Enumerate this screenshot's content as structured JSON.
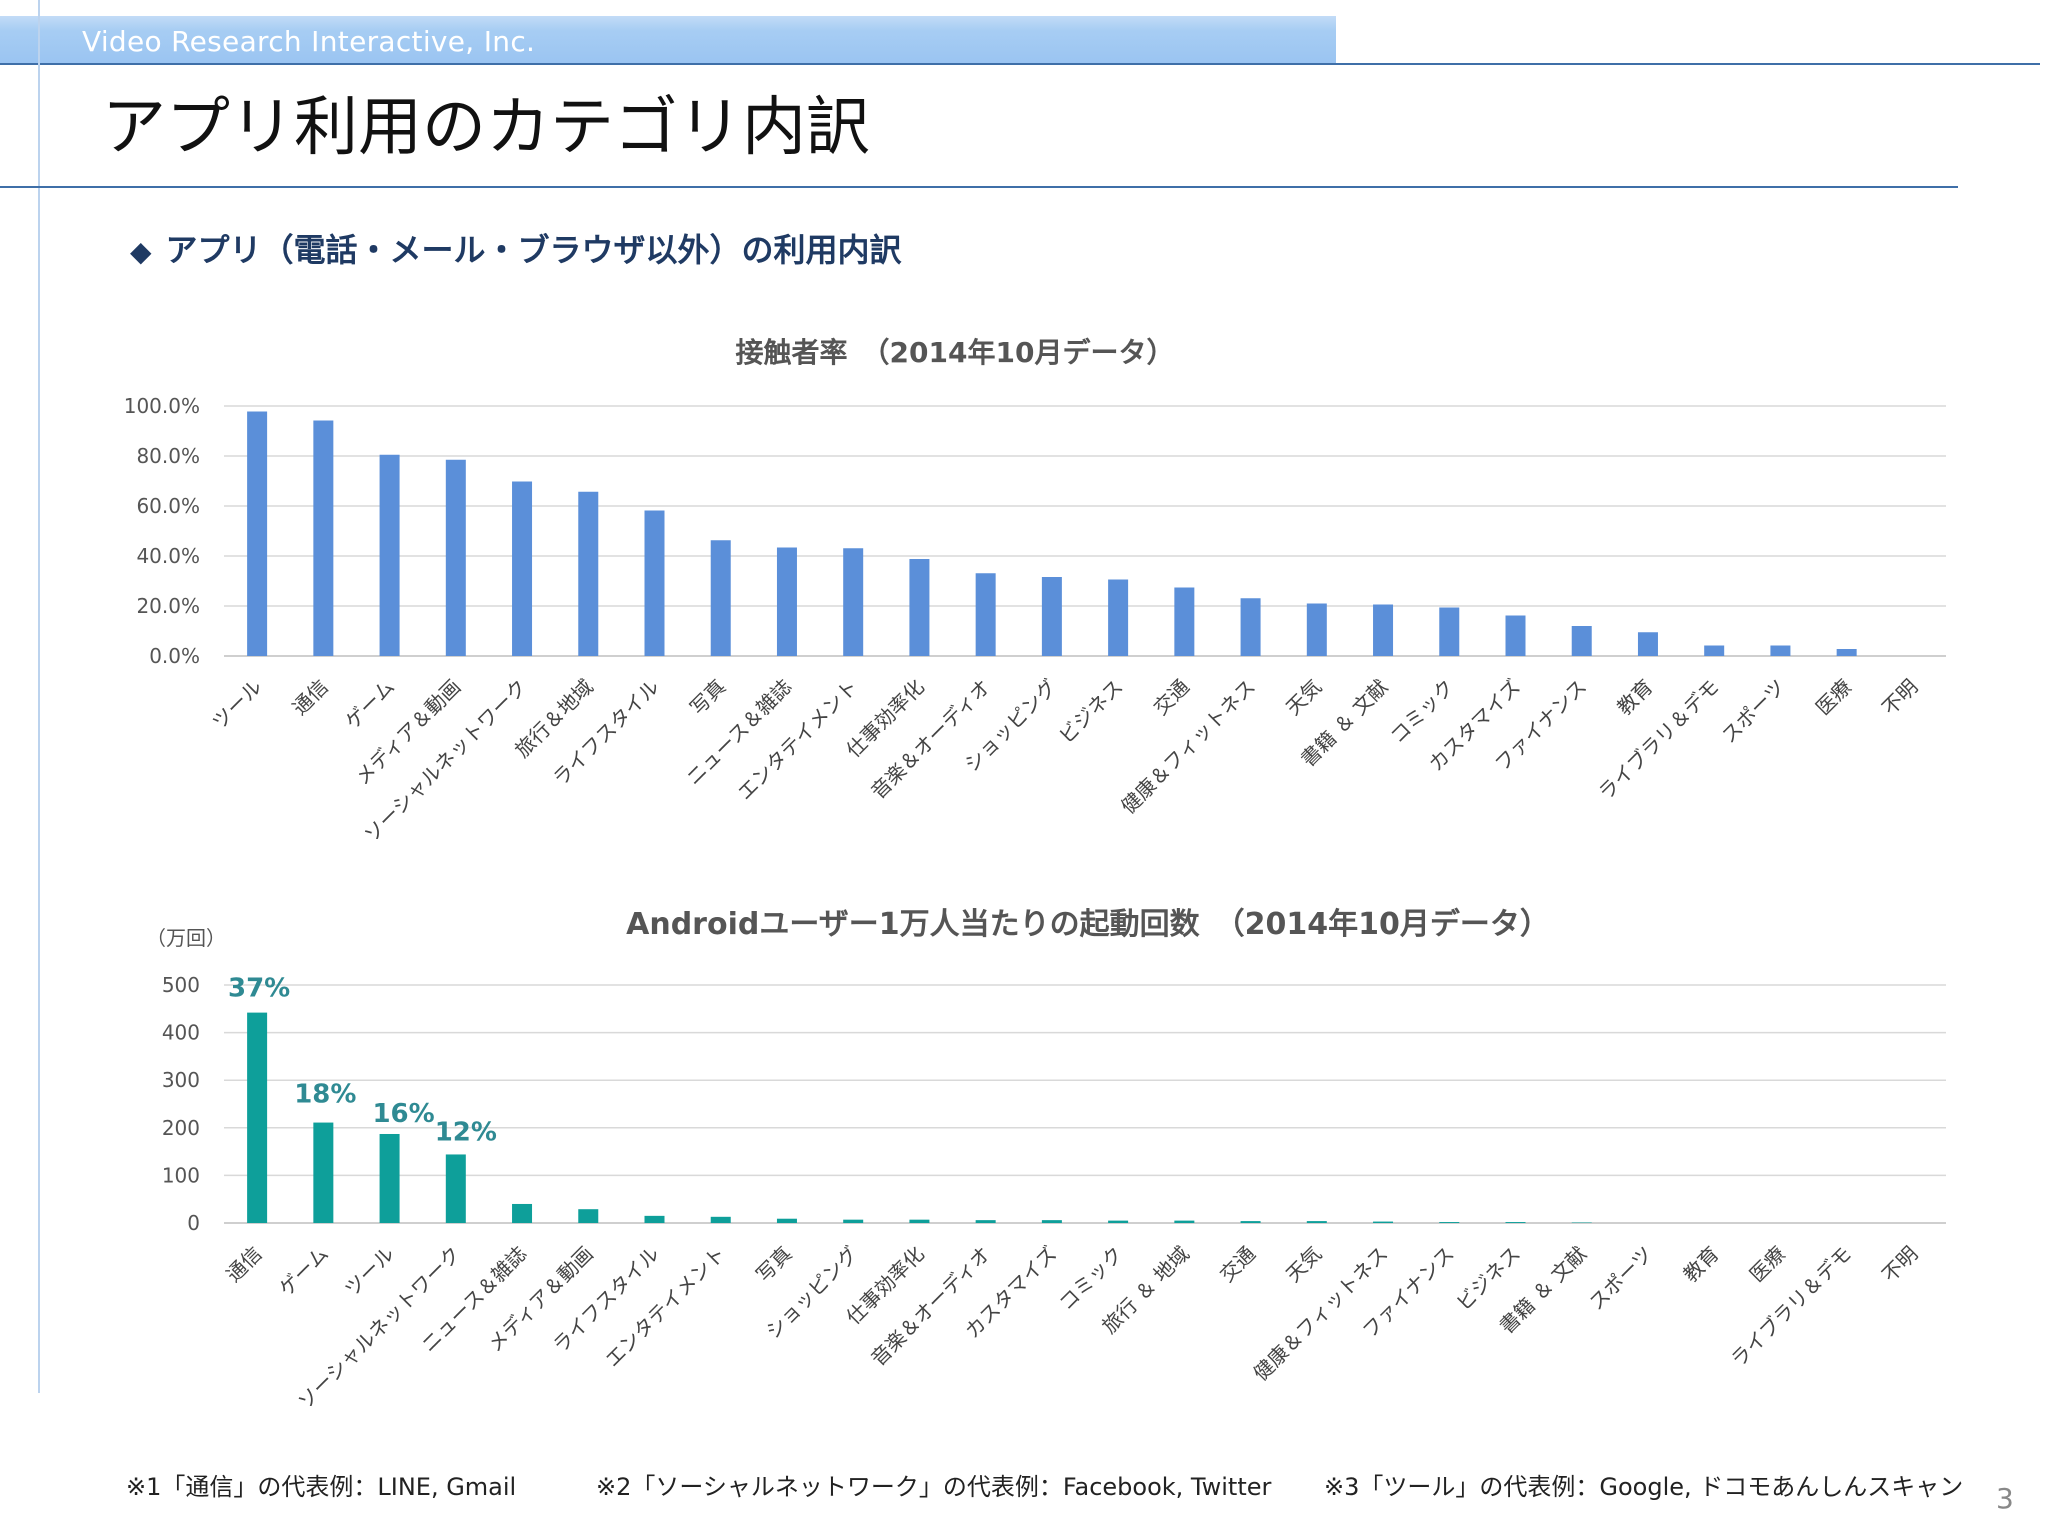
{
  "header": {
    "brand": "Video Research Interactive, Inc."
  },
  "page": {
    "title": "アプリ利用のカテゴリ内訳",
    "subtitle_bullet": "◆",
    "subtitle": "アプリ（電話・メール・ブラウザ以外）の利用内訳",
    "page_number": "3"
  },
  "colors": {
    "chart1_bar": "#5b8fd9",
    "chart2_bar": "#0e9f9a",
    "chart2_label": "#2f8a93",
    "grid": "#d9d9d9"
  },
  "chart_data": [
    {
      "type": "bar",
      "title": "接触者率　（2014年10月データ）",
      "categories": [
        "ツール",
        "通信",
        "ゲーム",
        "メディア＆動画",
        "ソーシャルネットワーク",
        "旅行＆地域",
        "ライフスタイル",
        "写真",
        "ニュース＆雑誌",
        "エンタテイメント",
        "仕事効率化",
        "音楽＆オーディオ",
        "ショッピング",
        "ビジネス",
        "交通",
        "健康＆フィットネス",
        "天気",
        "書籍 ＆ 文献",
        "コミック",
        "カスタマイズ",
        "ファイナンス",
        "教育",
        "ライブラリ＆デモ",
        "スポーツ",
        "医療",
        "不明"
      ],
      "values": [
        97.8,
        94.2,
        80.5,
        78.5,
        69.8,
        65.7,
        58.2,
        46.3,
        43.4,
        43.1,
        38.8,
        33.1,
        31.6,
        30.6,
        27.4,
        23.1,
        21.0,
        20.6,
        19.4,
        16.2,
        12.0,
        9.5,
        4.2,
        4.2,
        2.8,
        0.0
      ],
      "yticks": [
        "0.0%",
        "20.0%",
        "40.0%",
        "60.0%",
        "80.0%",
        "100.0%"
      ],
      "ylim": [
        0,
        100
      ],
      "grid": true
    },
    {
      "type": "bar",
      "title": "Androidユーザー1万人当たりの起動回数　（2014年10月データ）",
      "ylabel": "（万回）",
      "categories": [
        "通信",
        "ゲーム",
        "ツール",
        "ソーシャルネットワーク",
        "ニュース＆雑誌",
        "メディア＆動画",
        "ライフスタイル",
        "エンタテイメント",
        "写真",
        "ショッピング",
        "仕事効率化",
        "音楽＆オーディオ",
        "カスタマイズ",
        "コミック",
        "旅行 ＆ 地域",
        "交通",
        "天気",
        "健康＆フィットネス",
        "ファイナンス",
        "ビジネス",
        "書籍 ＆ 文献",
        "スポーツ",
        "教育",
        "医療",
        "ライブラリ＆デモ",
        "不明"
      ],
      "values": [
        442,
        211,
        187,
        144,
        40,
        29,
        15,
        13,
        9,
        7,
        7,
        6,
        6,
        5,
        5,
        4,
        4,
        3,
        2,
        2,
        1,
        0,
        0,
        0,
        0,
        0
      ],
      "yticks": [
        "0",
        "100",
        "200",
        "300",
        "400",
        "500"
      ],
      "ylim": [
        0,
        500
      ],
      "grid": true,
      "annotations": [
        "37%",
        "18%",
        "16%",
        "12%"
      ]
    }
  ],
  "footnotes": [
    "※1「通信」の代表例：LINE, Gmail",
    "※2「ソーシャルネットワーク」の代表例：Facebook, Twitter",
    "※3「ツール」の代表例：Google, ドコモあんしんスキャン"
  ]
}
